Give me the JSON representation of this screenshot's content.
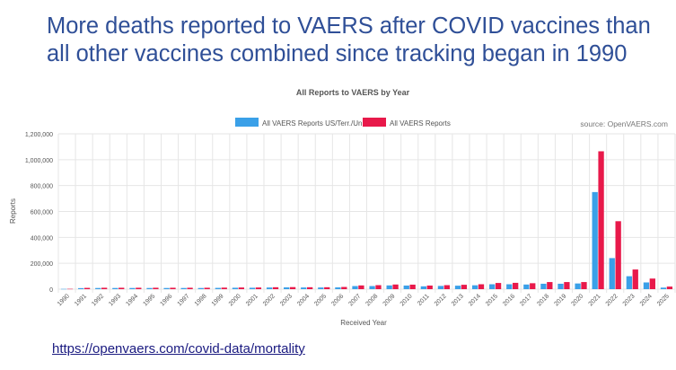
{
  "slide": {
    "headline_line1": "More deaths reported to VAERS after COVID vaccines than",
    "headline_line2": "all other vaccines combined since tracking began in 1990",
    "link": "https://openvaers.com/covid-data/mortality"
  },
  "colors": {
    "headline": "#2f4f97",
    "series_us": "#3aa0e8",
    "series_all": "#e8194a",
    "grid": "#e6e6e6"
  },
  "chart_data": {
    "type": "bar",
    "title": "All Reports to VAERS by Year",
    "source": "source: OpenVAERS.com",
    "xlabel": "Received Year",
    "ylabel": "Reports",
    "ylim": [
      0,
      1200000
    ],
    "yticks": [
      0,
      200000,
      400000,
      600000,
      800000,
      1000000,
      1200000
    ],
    "ytick_labels": [
      "0",
      "200,000",
      "400,000",
      "600,000",
      "800,000",
      "1,000,000",
      "1,200,000"
    ],
    "legend_position": "top-center",
    "categories": [
      "1990",
      "1991",
      "1992",
      "1993",
      "1994",
      "1995",
      "1996",
      "1997",
      "1998",
      "1999",
      "2000",
      "2001",
      "2002",
      "2003",
      "2004",
      "2005",
      "2006",
      "2007",
      "2008",
      "2009",
      "2010",
      "2011",
      "2012",
      "2013",
      "2014",
      "2015",
      "2016",
      "2017",
      "2018",
      "2019",
      "2020",
      "2021",
      "2022",
      "2023",
      "2024",
      "2025"
    ],
    "series": [
      {
        "name": "All VAERS Reports US/Terr./Unk.",
        "values": [
          2000,
          8000,
          9000,
          9000,
          9000,
          9000,
          9000,
          9000,
          9000,
          10000,
          11000,
          11000,
          13000,
          14000,
          13000,
          13000,
          14000,
          24000,
          24000,
          29000,
          28000,
          22000,
          25000,
          27000,
          30000,
          38000,
          38000,
          36000,
          42000,
          42000,
          44000,
          750000,
          240000,
          100000,
          52000,
          12000
        ]
      },
      {
        "name": "All VAERS Reports",
        "values": [
          2500,
          10000,
          11000,
          11000,
          11000,
          11000,
          11000,
          11000,
          11000,
          12000,
          13000,
          13000,
          15000,
          16000,
          15000,
          15000,
          17000,
          29000,
          31000,
          36000,
          35000,
          28000,
          31000,
          34000,
          38000,
          48000,
          49000,
          46000,
          55000,
          55000,
          55000,
          1065000,
          525000,
          152000,
          82000,
          20000
        ]
      }
    ]
  }
}
